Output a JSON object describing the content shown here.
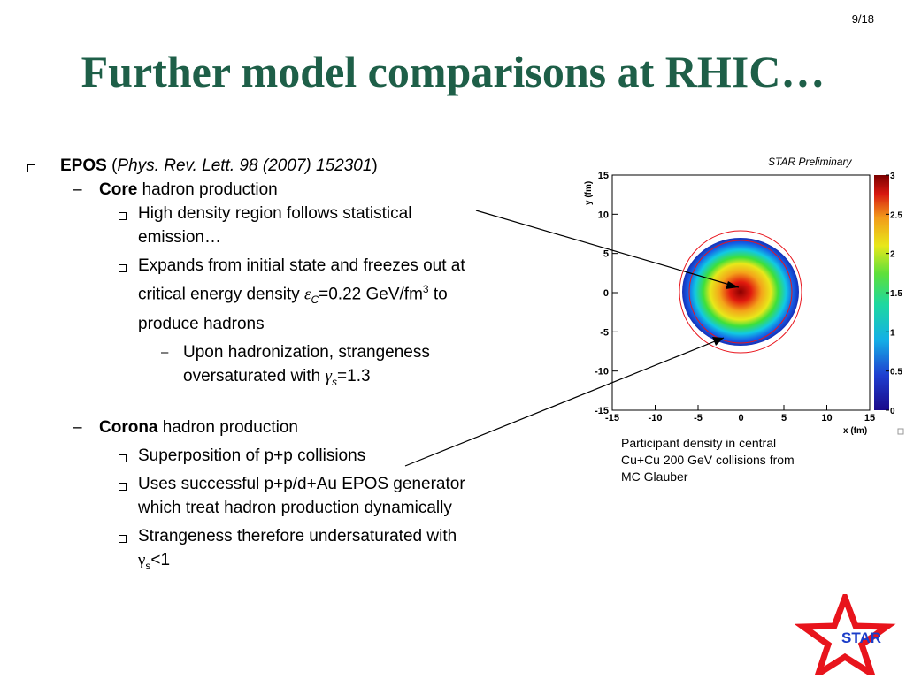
{
  "page_number": "9/18",
  "title": "Further model comparisons at RHIC…",
  "bullets": {
    "epos_name": "EPOS",
    "epos_paren_open": " (",
    "epos_ref": "Phys. Rev. Lett. 98 (2007) 152301",
    "epos_paren_close": ")",
    "core_bold": "Core",
    "core_rest": " hadron production",
    "core_item1_line1": "High density region follows statistical",
    "core_item1_line2": "emission…",
    "core_item2_line1": "Expands from initial state and freezes out at",
    "core_item2_line2_a": "critical energy density ",
    "core_item2_epsilon": "ε",
    "core_item2_sub": "C",
    "core_item2_line2_b": "=0.22 GeV/fm",
    "core_item2_sup": "3",
    "core_item2_line2_c": " to",
    "core_item2_line3": "produce hadrons",
    "sub_line1": "Upon hadronization, strangeness",
    "sub_line2_a": "oversaturated with ",
    "sub_gamma": "γ",
    "sub_gamma_sub": "s",
    "sub_line2_b": "=1.3",
    "corona_bold": "Corona",
    "corona_rest": " hadron production",
    "corona_item1": "Superposition of p+p collisions",
    "corona_item2_line1": "Uses successful p+p/d+Au EPOS generator",
    "corona_item2_line2": "which treat hadron production dynamically",
    "corona_item3_line1": "Strangeness therefore undersaturated with",
    "corona_item3_gamma": "γ",
    "corona_item3_sub": "s",
    "corona_item3_rest": "<1"
  },
  "chart_label": "STAR Preliminary",
  "caption": {
    "line1": "Participant density in central",
    "line2": "Cu+Cu 200 GeV collisions from",
    "line3": "MC Glauber"
  },
  "logo_text": "STAR",
  "colors": {
    "title": "#1e5f48",
    "star_red": "#e8141c",
    "star_text": "#1a3cc8"
  },
  "chart_data": {
    "type": "heatmap",
    "xlabel": "x (fm)",
    "ylabel": "y (fm)",
    "xlim": [
      -15,
      15
    ],
    "ylim": [
      -15,
      15
    ],
    "x_ticks": [
      "-15",
      "-10",
      "-5",
      "0",
      "5",
      "10",
      "15"
    ],
    "y_ticks": [
      "15",
      "10",
      "5",
      "0",
      "-5",
      "-10",
      "-15"
    ],
    "z_range": [
      0,
      3
    ],
    "z_ticks": [
      "3",
      "2.5",
      "2",
      "1.5",
      "1",
      "0.5",
      "0"
    ],
    "distribution": {
      "center": [
        0,
        0
      ],
      "peak_density": 3
    },
    "reference_circles_radii_fm": [
      5,
      7
    ],
    "colormap": "rainbow"
  }
}
